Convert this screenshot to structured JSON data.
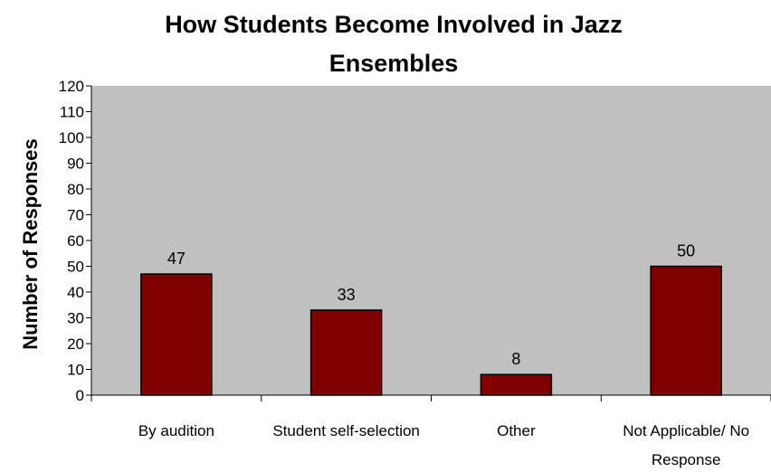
{
  "chart_data": {
    "type": "bar",
    "title": [
      "How Students Become Involved in Jazz",
      "Ensembles"
    ],
    "xlabel": "",
    "ylabel": "Number of Responses",
    "categories": [
      [
        "By audition"
      ],
      [
        "Student self-selection"
      ],
      [
        "Other"
      ],
      [
        "Not Applicable/ No",
        "Response"
      ]
    ],
    "values": [
      47,
      33,
      8,
      50
    ],
    "ylim": [
      0,
      120
    ],
    "yticks": [
      0,
      10,
      20,
      30,
      40,
      50,
      60,
      70,
      80,
      90,
      100,
      110,
      120
    ],
    "grid": false,
    "colors": {
      "bar_fill": "#800000",
      "bar_stroke": "#000000",
      "plot_background": "#c0c0c0"
    }
  }
}
